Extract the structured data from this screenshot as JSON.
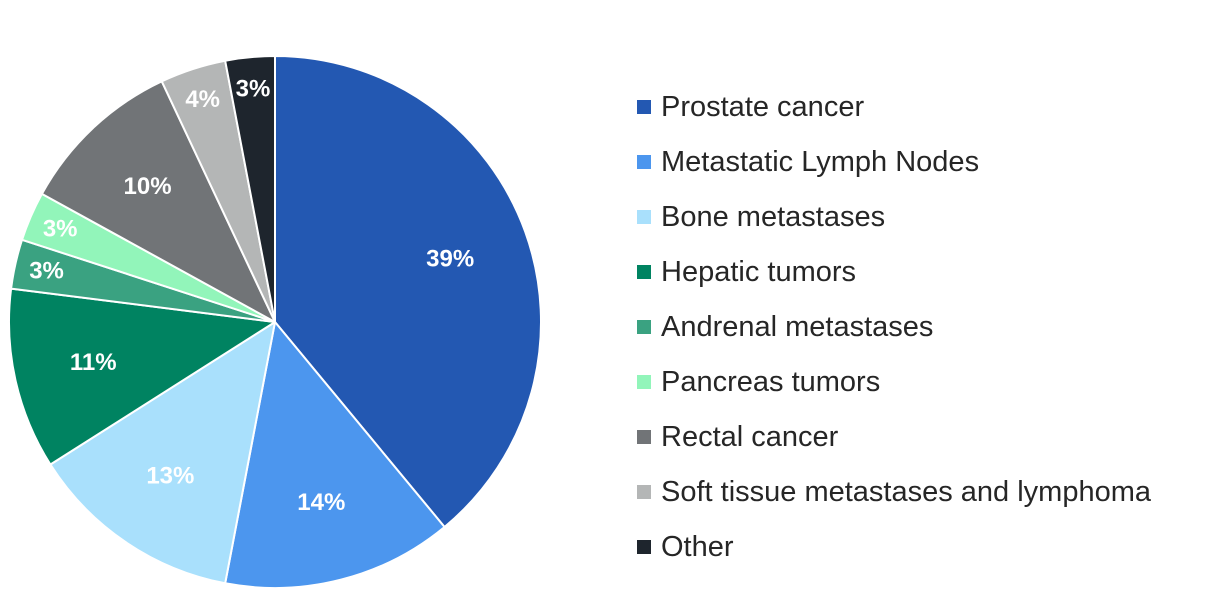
{
  "chart_data": {
    "type": "pie",
    "title": "",
    "legend_position": "right",
    "slices": [
      {
        "name": "Prostate cancer",
        "value": 39,
        "label": "39%",
        "color": "#2358B2"
      },
      {
        "name": "Metastatic Lymph Nodes",
        "value": 14,
        "label": "14%",
        "color": "#4C96EE"
      },
      {
        "name": "Bone metastases",
        "value": 13,
        "label": "13%",
        "color": "#A9E0FC"
      },
      {
        "name": "Hepatic tumors",
        "value": 11,
        "label": "11%",
        "color": "#008361"
      },
      {
        "name": "Andrenal metastases",
        "value": 3,
        "label": "3%",
        "color": "#3AA281"
      },
      {
        "name": "Pancreas tumors",
        "value": 3,
        "label": "3%",
        "color": "#92F5BA"
      },
      {
        "name": "Rectal cancer",
        "value": 10,
        "label": "10%",
        "color": "#717477"
      },
      {
        "name": "Soft tissue metastases and lymphoma",
        "value": 4,
        "label": "4%",
        "color": "#B4B6B6"
      },
      {
        "name": "Other",
        "value": 3,
        "label": "3%",
        "color": "#1E252D"
      }
    ]
  }
}
